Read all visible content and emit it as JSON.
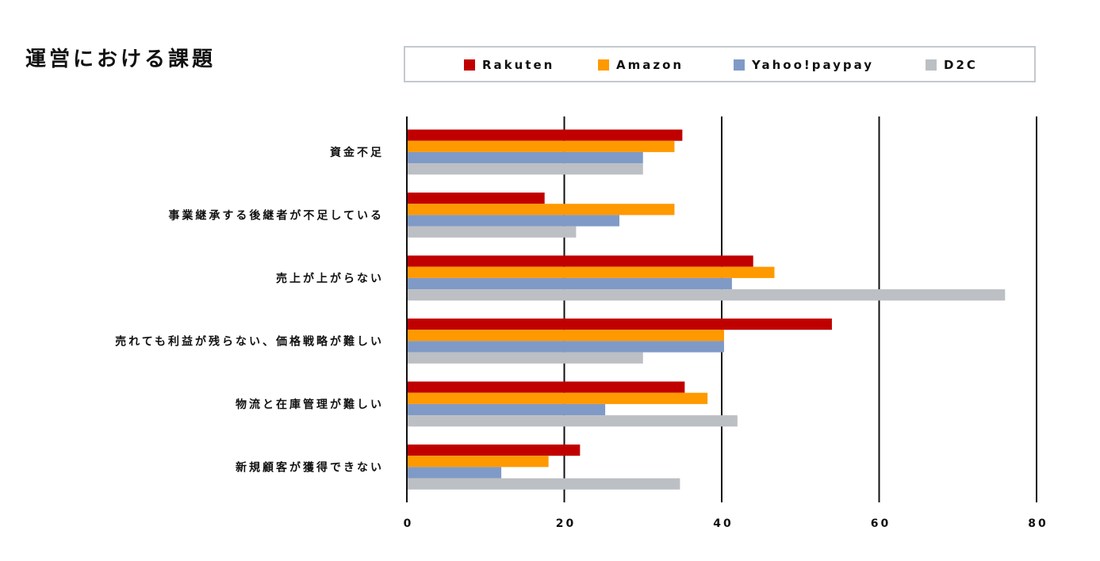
{
  "colors": {
    "Rakuten": "#c00000",
    "Amazon": "#ff9900",
    "Yahoo!paypay": "#7f9ac6",
    "D2C": "#bcbfc3",
    "grid": "#111111"
  },
  "chart_data": {
    "type": "bar",
    "orientation": "horizontal",
    "title": "運営における課題",
    "categories": [
      "資金不足",
      "事業継承する後継者が不足している",
      "売上が上がらない",
      "売れても利益が残らない、価格戦略が難しい",
      "物流と在庫管理が難しい",
      "新規顧客が獲得できない"
    ],
    "series": [
      {
        "name": "Rakuten",
        "values": [
          35,
          17.5,
          44,
          54,
          35.3,
          22
        ]
      },
      {
        "name": "Amazon",
        "values": [
          34,
          34,
          46.7,
          40.3,
          38.2,
          18
        ]
      },
      {
        "name": "Yahoo!paypay",
        "values": [
          30,
          27,
          41.3,
          40.3,
          25.2,
          12
        ]
      },
      {
        "name": "D2C",
        "values": [
          30,
          21.5,
          76,
          30,
          42,
          34.7
        ]
      }
    ],
    "xlim": [
      0,
      80
    ],
    "xticks": [
      "0",
      "20",
      "40",
      "60",
      "80"
    ],
    "grid": true,
    "legend_position": "top"
  }
}
